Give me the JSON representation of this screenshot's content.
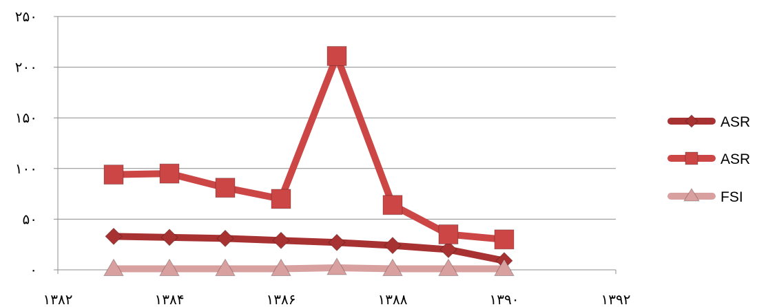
{
  "chart_data": {
    "type": "line",
    "title": "",
    "xlabel": "",
    "ylabel": "",
    "xlim": [
      1382,
      1392
    ],
    "ylim": [
      0,
      250
    ],
    "x_ticks": [
      1382,
      1384,
      1386,
      1388,
      1390,
      1392
    ],
    "x_tick_labels": [
      "۱۳۸۲",
      "۱۳۸۴",
      "۱۳۸۶",
      "۱۳۸۸",
      "۱۳۹۰",
      "۱۳۹۲"
    ],
    "y_ticks": [
      0,
      50,
      100,
      150,
      200,
      250
    ],
    "y_tick_labels": [
      "۰",
      "۵۰",
      "۱۰۰",
      "۱۵۰",
      "۲۰۰",
      "۲۵۰"
    ],
    "grid": "horizontal",
    "legend_position": "right",
    "series": [
      {
        "name": "ASR",
        "marker": "diamond",
        "color": "#a83232",
        "x": [
          1383,
          1384,
          1385,
          1386,
          1387,
          1388,
          1389,
          1390
        ],
        "y": [
          33,
          32,
          31,
          29,
          27,
          24,
          20,
          9
        ]
      },
      {
        "name": "ASR",
        "marker": "square",
        "color": "#cc4646",
        "x": [
          1383,
          1384,
          1385,
          1386,
          1387,
          1388,
          1389,
          1390
        ],
        "y": [
          94,
          95,
          81,
          70,
          211,
          64,
          35,
          30
        ]
      },
      {
        "name": "FSI",
        "marker": "triangle",
        "color": "#d9a0a0",
        "x": [
          1383,
          1384,
          1385,
          1386,
          1387,
          1388,
          1389,
          1390
        ],
        "y": [
          1,
          1,
          1,
          1,
          2,
          1,
          1,
          1
        ]
      }
    ]
  }
}
